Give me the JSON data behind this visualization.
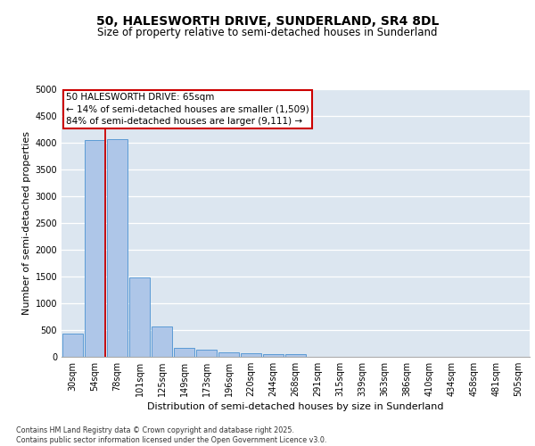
{
  "title1": "50, HALESWORTH DRIVE, SUNDERLAND, SR4 8DL",
  "title2": "Size of property relative to semi-detached houses in Sunderland",
  "xlabel": "Distribution of semi-detached houses by size in Sunderland",
  "ylabel": "Number of semi-detached properties",
  "categories": [
    "30sqm",
    "54sqm",
    "78sqm",
    "101sqm",
    "125sqm",
    "149sqm",
    "173sqm",
    "196sqm",
    "220sqm",
    "244sqm",
    "268sqm",
    "291sqm",
    "315sqm",
    "339sqm",
    "363sqm",
    "386sqm",
    "410sqm",
    "434sqm",
    "458sqm",
    "481sqm",
    "505sqm"
  ],
  "values": [
    430,
    4050,
    4060,
    1480,
    560,
    175,
    130,
    90,
    60,
    55,
    50,
    0,
    0,
    0,
    0,
    0,
    0,
    0,
    0,
    0,
    0
  ],
  "bar_color": "#aec6e8",
  "bar_edge_color": "#5b9bd5",
  "property_label": "50 HALESWORTH DRIVE: 65sqm",
  "smaller_pct": "14% of semi-detached houses are smaller (1,509)",
  "larger_pct": "84% of semi-detached houses are larger (9,111)",
  "annotation_box_color": "#ffffff",
  "annotation_box_edge": "#cc0000",
  "line_color": "#cc0000",
  "ylim": [
    0,
    5000
  ],
  "yticks": [
    0,
    500,
    1000,
    1500,
    2000,
    2500,
    3000,
    3500,
    4000,
    4500,
    5000
  ],
  "background_color": "#dce6f0",
  "footer1": "Contains HM Land Registry data © Crown copyright and database right 2025.",
  "footer2": "Contains public sector information licensed under the Open Government Licence v3.0.",
  "title_fontsize": 10,
  "subtitle_fontsize": 8.5,
  "axis_label_fontsize": 8,
  "tick_fontsize": 7,
  "annotation_fontsize": 7.5
}
